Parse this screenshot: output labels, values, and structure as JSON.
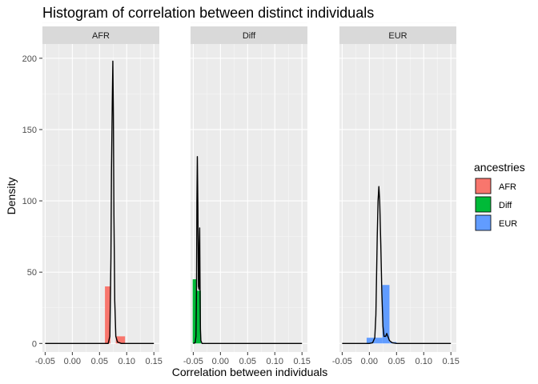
{
  "chart_data": {
    "type": "histogram",
    "title": "Histogram of correlation between distinct individuals",
    "xlabel": "Correlation between individuals",
    "ylabel": "Density",
    "xlim": [
      -0.055,
      0.16
    ],
    "ylim": [
      -6,
      210
    ],
    "x_ticks": [
      -0.05,
      0.0,
      0.05,
      0.1,
      0.15
    ],
    "x_tick_labels": [
      "-0.05",
      "0.00",
      "0.05",
      "0.10",
      "0.15"
    ],
    "y_ticks": [
      0,
      50,
      100,
      150,
      200
    ],
    "y_tick_labels": [
      "0",
      "50",
      "100",
      "150",
      "200"
    ],
    "grid": true,
    "legend": {
      "title": "ancestries",
      "position": "right",
      "entries": [
        {
          "label": "AFR",
          "color": "#F8766D"
        },
        {
          "label": "Diff",
          "color": "#00BA38"
        },
        {
          "label": "EUR",
          "color": "#619CFF"
        }
      ]
    },
    "facets": [
      {
        "label": "AFR",
        "color": "#F8766D",
        "bins": [
          {
            "x0": 0.06,
            "x1": 0.07,
            "density": 40
          },
          {
            "x0": 0.07,
            "x1": 0.08,
            "density": 0
          },
          {
            "x0": 0.08,
            "x1": 0.097,
            "density": 5
          }
        ],
        "density_curve": [
          [
            -0.05,
            0
          ],
          [
            0.06,
            0
          ],
          [
            0.066,
            0
          ],
          [
            0.069,
            5
          ],
          [
            0.071,
            60
          ],
          [
            0.072,
            120
          ],
          [
            0.0735,
            170
          ],
          [
            0.0745,
            198
          ],
          [
            0.0755,
            160
          ],
          [
            0.0765,
            90
          ],
          [
            0.078,
            30
          ],
          [
            0.08,
            5
          ],
          [
            0.083,
            1
          ],
          [
            0.09,
            0
          ],
          [
            0.15,
            0
          ]
        ]
      },
      {
        "label": "Diff",
        "color": "#00BA38",
        "bins": [
          {
            "x0": -0.051,
            "x1": -0.044,
            "density": 45
          },
          {
            "x0": -0.044,
            "x1": -0.036,
            "density": 37
          }
        ],
        "density_curve": [
          [
            -0.05,
            0
          ],
          [
            -0.0465,
            0.5
          ],
          [
            -0.045,
            5
          ],
          [
            -0.044,
            40
          ],
          [
            -0.0433,
            100
          ],
          [
            -0.0425,
            131
          ],
          [
            -0.0415,
            95
          ],
          [
            -0.0405,
            40
          ],
          [
            -0.0395,
            38
          ],
          [
            -0.0388,
            70
          ],
          [
            -0.0382,
            81
          ],
          [
            -0.0375,
            40
          ],
          [
            -0.0368,
            10
          ],
          [
            -0.036,
            2
          ],
          [
            -0.034,
            0
          ],
          [
            0.15,
            0
          ]
        ]
      },
      {
        "label": "EUR",
        "color": "#619CFF",
        "bins": [
          {
            "x0": -0.005,
            "x1": 0.01,
            "density": 4
          },
          {
            "x0": 0.01,
            "x1": 0.024,
            "density": 4
          },
          {
            "x0": 0.024,
            "x1": 0.037,
            "density": 41
          },
          {
            "x0": 0.037,
            "x1": 0.05,
            "density": 1
          }
        ],
        "density_curve": [
          [
            -0.05,
            0
          ],
          [
            0.0,
            0
          ],
          [
            0.006,
            0.5
          ],
          [
            0.01,
            4
          ],
          [
            0.012,
            20
          ],
          [
            0.0145,
            75
          ],
          [
            0.016,
            100
          ],
          [
            0.0175,
            110
          ],
          [
            0.019,
            100
          ],
          [
            0.021,
            70
          ],
          [
            0.023,
            35
          ],
          [
            0.025,
            12
          ],
          [
            0.027,
            5
          ],
          [
            0.03,
            5
          ],
          [
            0.032,
            7
          ],
          [
            0.034,
            5
          ],
          [
            0.037,
            2
          ],
          [
            0.042,
            0.5
          ],
          [
            0.05,
            0
          ],
          [
            0.15,
            0
          ]
        ]
      }
    ]
  }
}
